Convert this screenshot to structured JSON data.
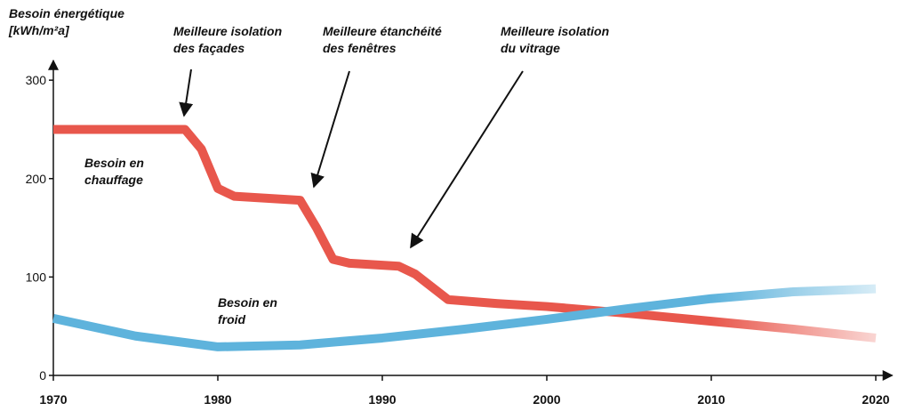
{
  "chart_data": {
    "type": "line",
    "y_label": [
      "Besoin énergétique",
      "[kWh/m²a]"
    ],
    "annotations": [
      [
        "Meilleure isolation",
        "des façades"
      ],
      [
        "Meilleure étanchéité",
        "des fenêtres"
      ],
      [
        "Meilleure isolation",
        "du vitrage"
      ]
    ],
    "series": [
      {
        "name": [
          "Besoin en",
          "chauffage"
        ],
        "color": "#e8574c",
        "x": [
          1970,
          1978,
          1979,
          1980,
          1981,
          1983,
          1985,
          1986,
          1987,
          1988,
          1991,
          1992,
          1994,
          1997,
          2000,
          2005,
          2010,
          2015,
          2020
        ],
        "values": [
          250,
          250,
          230,
          190,
          182,
          180,
          178,
          150,
          118,
          114,
          111,
          103,
          77,
          73,
          70,
          63,
          55,
          47,
          38
        ]
      },
      {
        "name": [
          "Besoin en",
          "froid"
        ],
        "color": "#5eb3dc",
        "x": [
          1970,
          1975,
          1980,
          1985,
          1990,
          1995,
          2000,
          2005,
          2010,
          2015,
          2020
        ],
        "values": [
          58,
          40,
          29,
          31,
          38,
          47,
          57,
          68,
          78,
          85,
          88
        ]
      }
    ],
    "xlim": [
      1970,
      2021
    ],
    "xticks": [
      1970,
      1980,
      1990,
      2000,
      2010,
      2020
    ],
    "ylim": [
      0,
      320
    ],
    "yticks": [
      0,
      100,
      200,
      300
    ]
  }
}
